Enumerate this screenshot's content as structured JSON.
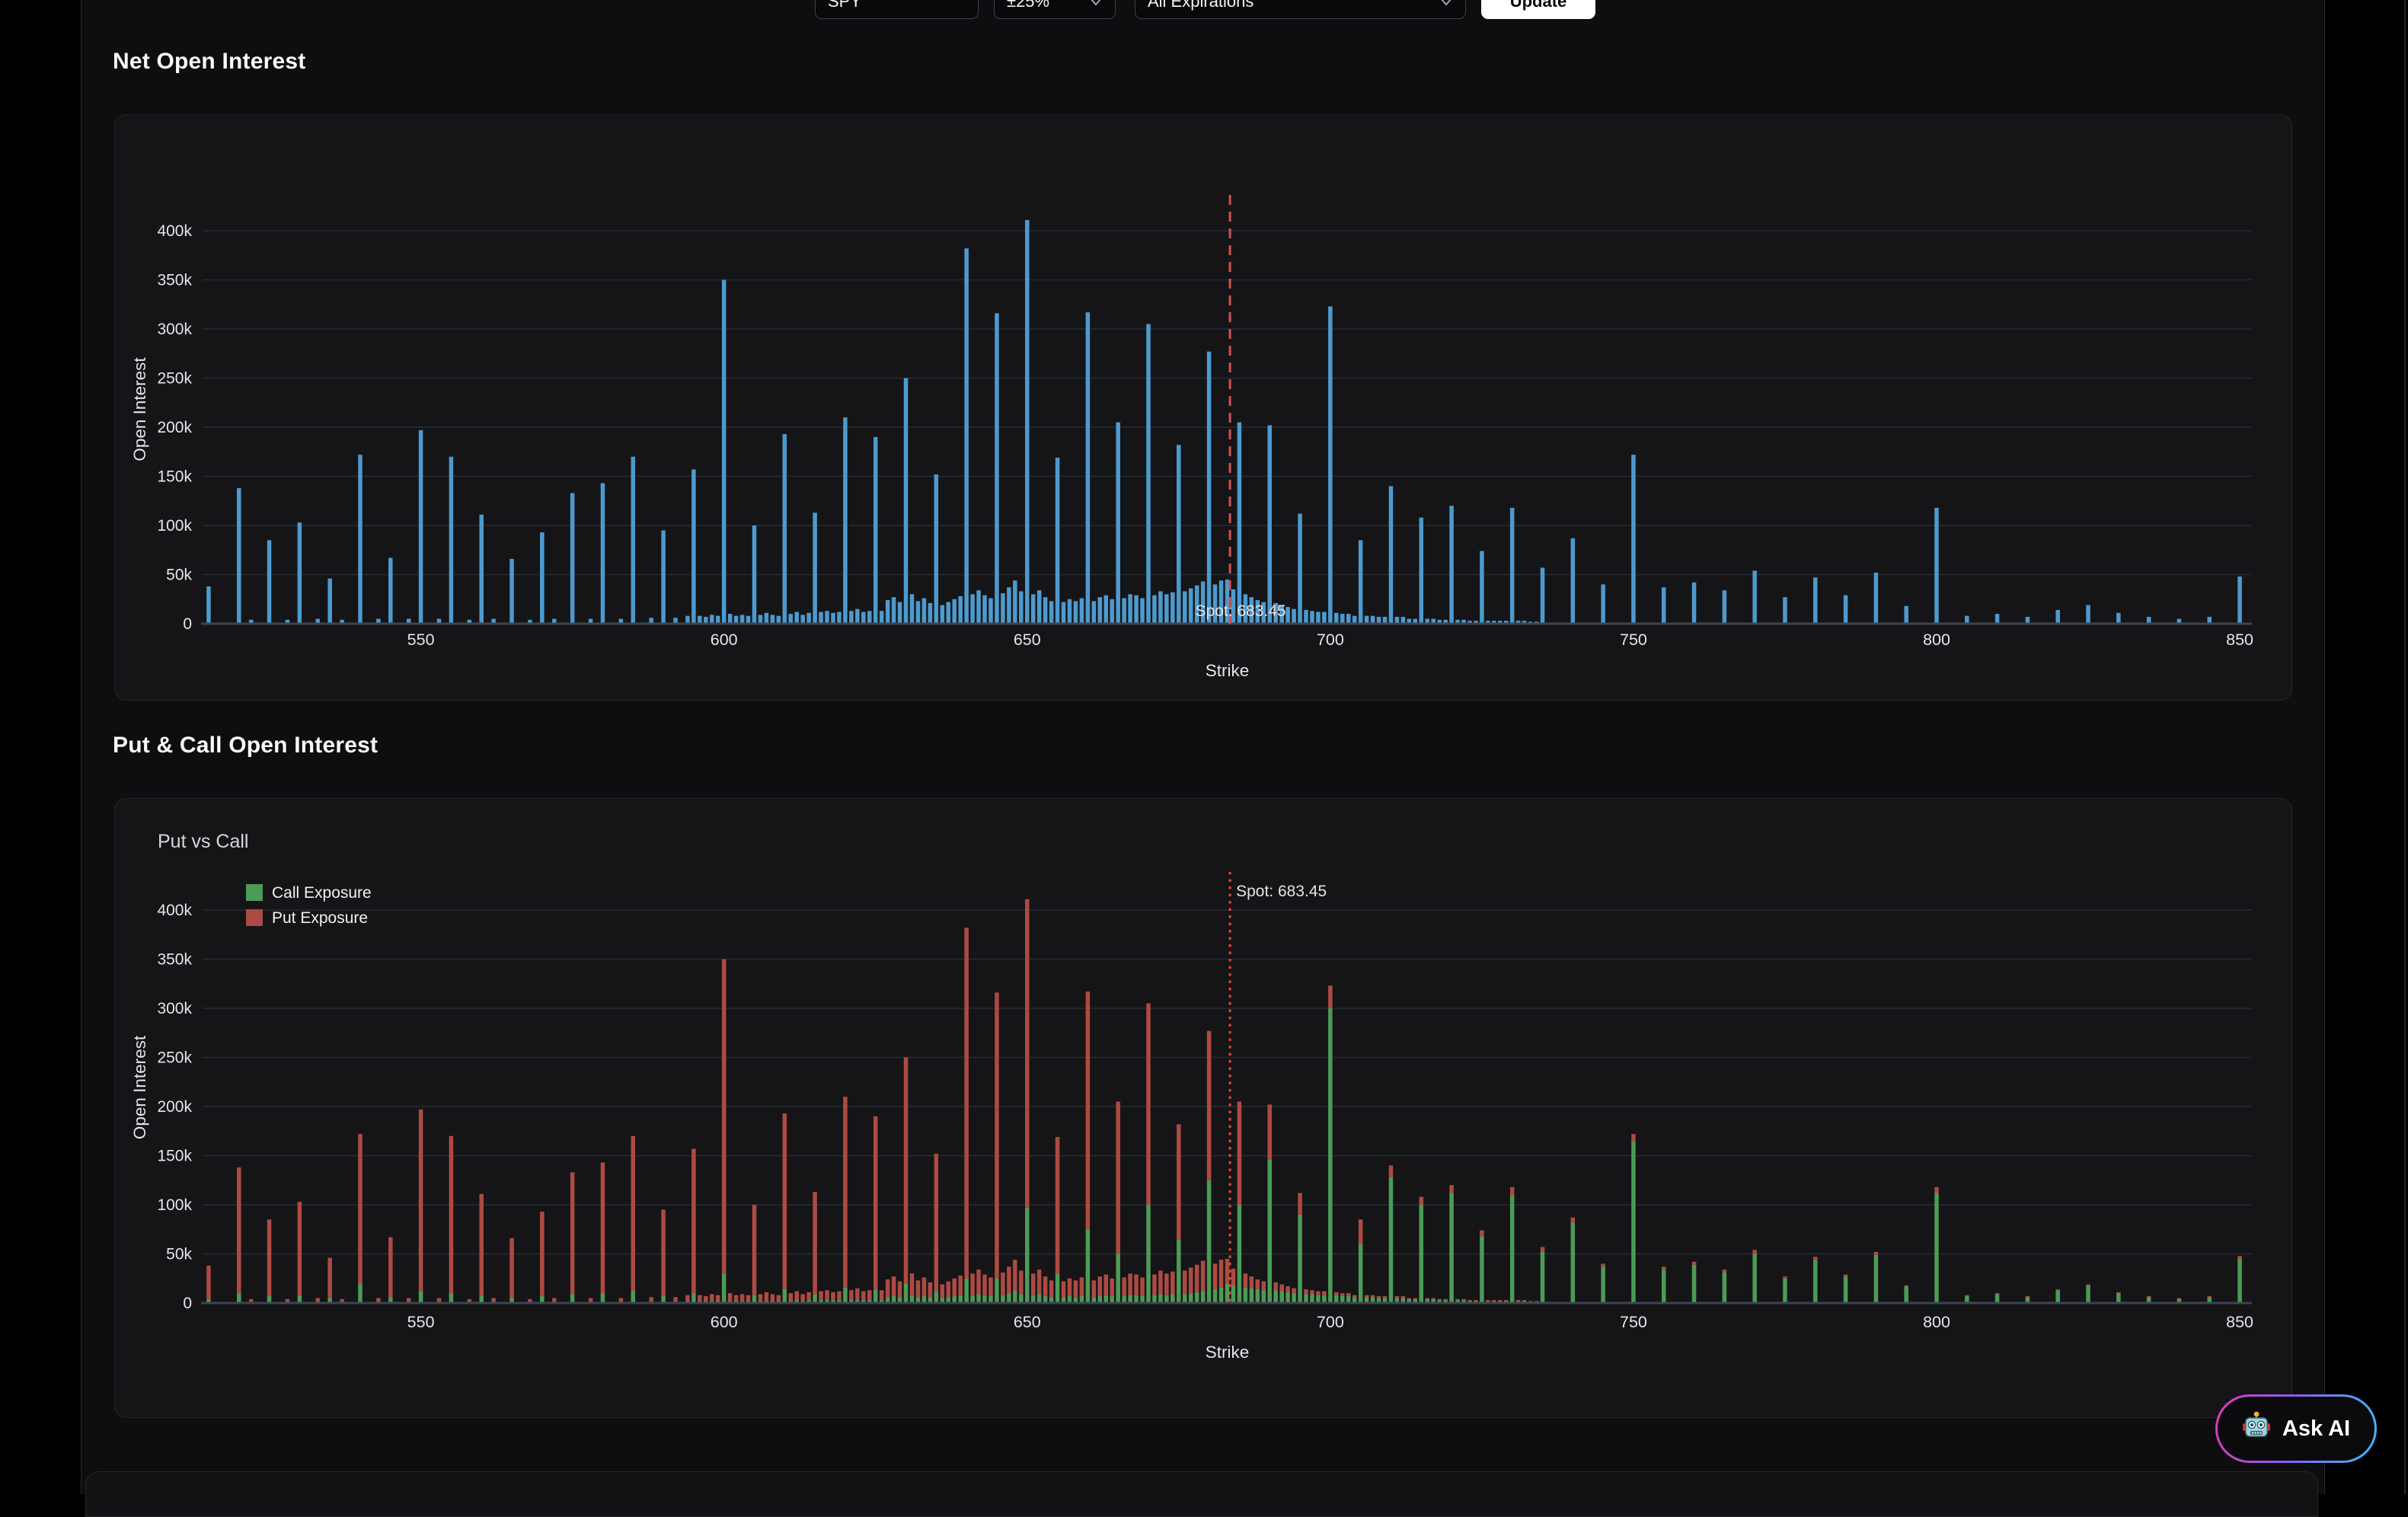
{
  "controls": {
    "ticker": {
      "value": "SPY"
    },
    "range": {
      "value": "±25%"
    },
    "expirations": {
      "value": "All Expirations"
    },
    "update_label": "Update"
  },
  "headings": {
    "net": "Net Open Interest",
    "putcall": "Put & Call Open Interest"
  },
  "ask_ai": {
    "label": "Ask AI",
    "icon": "robot-icon"
  },
  "chart_data": [
    {
      "type": "bar",
      "mode": "total",
      "name": "net-open-interest",
      "title": "",
      "xlabel": "Strike",
      "ylabel": "Open Interest",
      "x_ticks": [
        550,
        600,
        650,
        700,
        750,
        800,
        850
      ],
      "y_ticks": [
        {
          "k": 0,
          "label": "0"
        },
        {
          "k": 50,
          "label": "50k"
        },
        {
          "k": 100,
          "label": "100k"
        },
        {
          "k": 150,
          "label": "150k"
        },
        {
          "k": 200,
          "label": "200k"
        },
        {
          "k": 250,
          "label": "250k"
        },
        {
          "k": 300,
          "label": "300k"
        },
        {
          "k": 350,
          "label": "350k"
        },
        {
          "k": 400,
          "label": "400k"
        }
      ],
      "xlim": [
        514,
        852
      ],
      "ylim_k": [
        0,
        435
      ],
      "grid": true,
      "bar_color": "#4d9ace",
      "grid_color": "#242c35",
      "axis_color": "#3b4551",
      "text_color": "#e4e6ea",
      "spot": {
        "value": 683.45,
        "label": "Spot: 683.45",
        "color": "#d4504e",
        "style": "dashed"
      }
    },
    {
      "type": "bar",
      "mode": "stacked",
      "name": "put-vs-call",
      "title": "Put vs Call",
      "xlabel": "Strike",
      "ylabel": "Open Interest",
      "legend": [
        {
          "label": "Call Exposure",
          "color": "#4c9b57"
        },
        {
          "label": "Put Exposure",
          "color": "#ad4a43"
        }
      ],
      "legend_position": "top-left",
      "x_ticks": [
        550,
        600,
        650,
        700,
        750,
        800,
        850
      ],
      "y_ticks": [
        {
          "k": 0,
          "label": "0"
        },
        {
          "k": 50,
          "label": "50k"
        },
        {
          "k": 100,
          "label": "100k"
        },
        {
          "k": 150,
          "label": "150k"
        },
        {
          "k": 200,
          "label": "200k"
        },
        {
          "k": 250,
          "label": "250k"
        },
        {
          "k": 300,
          "label": "300k"
        },
        {
          "k": 350,
          "label": "350k"
        },
        {
          "k": 400,
          "label": "400k"
        }
      ],
      "xlim": [
        514,
        852
      ],
      "ylim_k": [
        0,
        435
      ],
      "grid": true,
      "grid_color": "#242c35",
      "axis_color": "#3b4551",
      "text_color": "#e4e6ea",
      "spot": {
        "value": 683.45,
        "label": "Spot: 683.45",
        "color": "#ea4430",
        "style": "dotted"
      }
    }
  ],
  "bars_k": [
    [
      515,
      4,
      34
    ],
    [
      520,
      10,
      128
    ],
    [
      525,
      7,
      78
    ],
    [
      530,
      8,
      95
    ],
    [
      535,
      5,
      41
    ],
    [
      540,
      20,
      152
    ],
    [
      545,
      6,
      61
    ],
    [
      550,
      12,
      185
    ],
    [
      555,
      10,
      160
    ],
    [
      560,
      8,
      103
    ],
    [
      565,
      5,
      61
    ],
    [
      570,
      7,
      86
    ],
    [
      575,
      9,
      124
    ],
    [
      580,
      10,
      133
    ],
    [
      585,
      12,
      158
    ],
    [
      590,
      7,
      88
    ],
    [
      595,
      10,
      147
    ],
    [
      600,
      30,
      320
    ],
    [
      605,
      8,
      92
    ],
    [
      610,
      14,
      179
    ],
    [
      615,
      9,
      104
    ],
    [
      620,
      16,
      194
    ],
    [
      625,
      14,
      176
    ],
    [
      630,
      20,
      230
    ],
    [
      635,
      12,
      140
    ],
    [
      640,
      25,
      357
    ],
    [
      645,
      25,
      291
    ],
    [
      650,
      97,
      314
    ],
    [
      655,
      30,
      139
    ],
    [
      660,
      75,
      242
    ],
    [
      665,
      50,
      155
    ],
    [
      670,
      100,
      205
    ],
    [
      675,
      65,
      117
    ],
    [
      680,
      125,
      152
    ],
    [
      685,
      100,
      105
    ],
    [
      690,
      146,
      56
    ],
    [
      695,
      90,
      22
    ],
    [
      700,
      300,
      23
    ],
    [
      705,
      60,
      25
    ],
    [
      710,
      128,
      12
    ],
    [
      715,
      100,
      8
    ],
    [
      720,
      112,
      8
    ],
    [
      725,
      68,
      6
    ],
    [
      730,
      110,
      8
    ],
    [
      735,
      52,
      5
    ],
    [
      740,
      82,
      5
    ],
    [
      745,
      37,
      3
    ],
    [
      750,
      165,
      7
    ],
    [
      755,
      34,
      3
    ],
    [
      760,
      39,
      3
    ],
    [
      765,
      31,
      3
    ],
    [
      770,
      50,
      4
    ],
    [
      775,
      25,
      2
    ],
    [
      780,
      44,
      3
    ],
    [
      785,
      27,
      2
    ],
    [
      790,
      49,
      3
    ],
    [
      795,
      17,
      1
    ],
    [
      800,
      112,
      6
    ],
    [
      805,
      7,
      1
    ],
    [
      810,
      9,
      1
    ],
    [
      815,
      6,
      1
    ],
    [
      820,
      13,
      1
    ],
    [
      825,
      18,
      1
    ],
    [
      830,
      10,
      1
    ],
    [
      835,
      6,
      1
    ],
    [
      840,
      4,
      1
    ],
    [
      845,
      6,
      1
    ],
    [
      850,
      45,
      3
    ],
    [
      522,
      1,
      3
    ],
    [
      528,
      1,
      3
    ],
    [
      533,
      1,
      4
    ],
    [
      537,
      1,
      3
    ],
    [
      543,
      1,
      4
    ],
    [
      548,
      1,
      4
    ],
    [
      553,
      1,
      4
    ],
    [
      558,
      1,
      3
    ],
    [
      562,
      1,
      4
    ],
    [
      568,
      1,
      3
    ],
    [
      572,
      1,
      4
    ],
    [
      578,
      1,
      4
    ],
    [
      583,
      1,
      4
    ],
    [
      588,
      1,
      5
    ],
    [
      592,
      1,
      5
    ],
    [
      594,
      2,
      6
    ],
    [
      596,
      2,
      6
    ],
    [
      597,
      2,
      5
    ],
    [
      598,
      2,
      7
    ],
    [
      599,
      2,
      6
    ],
    [
      601,
      2,
      8
    ],
    [
      602,
      2,
      6
    ],
    [
      603,
      2,
      7
    ],
    [
      604,
      2,
      6
    ],
    [
      606,
      2,
      7
    ],
    [
      607,
      2,
      9
    ],
    [
      608,
      2,
      7
    ],
    [
      609,
      2,
      6
    ],
    [
      611,
      2,
      8
    ],
    [
      612,
      3,
      9
    ],
    [
      613,
      2,
      7
    ],
    [
      614,
      3,
      8
    ],
    [
      616,
      3,
      9
    ],
    [
      617,
      3,
      10
    ],
    [
      618,
      3,
      8
    ],
    [
      619,
      3,
      9
    ],
    [
      621,
      3,
      10
    ],
    [
      622,
      3,
      12
    ],
    [
      623,
      3,
      9
    ],
    [
      624,
      3,
      10
    ],
    [
      626,
      3,
      10
    ],
    [
      627,
      6,
      18
    ],
    [
      628,
      7,
      20
    ],
    [
      629,
      6,
      16
    ],
    [
      631,
      8,
      22
    ],
    [
      632,
      6,
      17
    ],
    [
      633,
      7,
      19
    ],
    [
      634,
      6,
      15
    ],
    [
      636,
      5,
      14
    ],
    [
      637,
      6,
      16
    ],
    [
      638,
      7,
      18
    ],
    [
      639,
      8,
      20
    ],
    [
      641,
      8,
      22
    ],
    [
      642,
      9,
      25
    ],
    [
      643,
      8,
      21
    ],
    [
      644,
      7,
      19
    ],
    [
      646,
      8,
      23
    ],
    [
      647,
      10,
      27
    ],
    [
      648,
      12,
      32
    ],
    [
      649,
      9,
      24
    ],
    [
      651,
      8,
      22
    ],
    [
      652,
      9,
      25
    ],
    [
      653,
      7,
      20
    ],
    [
      654,
      6,
      17
    ],
    [
      656,
      6,
      16
    ],
    [
      657,
      7,
      18
    ],
    [
      658,
      6,
      17
    ],
    [
      659,
      7,
      19
    ],
    [
      661,
      6,
      17
    ],
    [
      662,
      7,
      20
    ],
    [
      663,
      8,
      21
    ],
    [
      664,
      7,
      18
    ],
    [
      666,
      7,
      19
    ],
    [
      667,
      8,
      22
    ],
    [
      668,
      8,
      21
    ],
    [
      669,
      7,
      19
    ],
    [
      671,
      8,
      21
    ],
    [
      672,
      9,
      24
    ],
    [
      673,
      8,
      22
    ],
    [
      674,
      9,
      23
    ],
    [
      676,
      9,
      24
    ],
    [
      677,
      10,
      26
    ],
    [
      678,
      11,
      28
    ],
    [
      679,
      12,
      31
    ],
    [
      681,
      14,
      26
    ],
    [
      682,
      16,
      28
    ],
    [
      683,
      20,
      25
    ],
    [
      684,
      18,
      17
    ],
    [
      686,
      16,
      14
    ],
    [
      687,
      15,
      12
    ],
    [
      688,
      14,
      10
    ],
    [
      689,
      13,
      9
    ],
    [
      691,
      13,
      8
    ],
    [
      692,
      12,
      7
    ],
    [
      693,
      11,
      6
    ],
    [
      694,
      10,
      5
    ],
    [
      696,
      9,
      5
    ],
    [
      697,
      9,
      4
    ],
    [
      698,
      8,
      4
    ],
    [
      699,
      8,
      4
    ],
    [
      701,
      8,
      3
    ],
    [
      702,
      7,
      3
    ],
    [
      703,
      7,
      3
    ],
    [
      704,
      6,
      2
    ],
    [
      706,
      6,
      2
    ],
    [
      707,
      6,
      2
    ],
    [
      708,
      5,
      2
    ],
    [
      709,
      5,
      2
    ],
    [
      711,
      5,
      2
    ],
    [
      712,
      5,
      2
    ],
    [
      713,
      4,
      1
    ],
    [
      714,
      4,
      1
    ],
    [
      716,
      4,
      1
    ],
    [
      717,
      4,
      1
    ],
    [
      718,
      3,
      1
    ],
    [
      719,
      3,
      1
    ],
    [
      721,
      3,
      1
    ],
    [
      722,
      3,
      1
    ],
    [
      723,
      2,
      1
    ],
    [
      724,
      2,
      1
    ],
    [
      726,
      2,
      1
    ],
    [
      727,
      2,
      1
    ],
    [
      728,
      2,
      1
    ],
    [
      729,
      2,
      1
    ],
    [
      731,
      2,
      1
    ],
    [
      732,
      2,
      1
    ],
    [
      733,
      1,
      1
    ],
    [
      734,
      1,
      1
    ]
  ]
}
